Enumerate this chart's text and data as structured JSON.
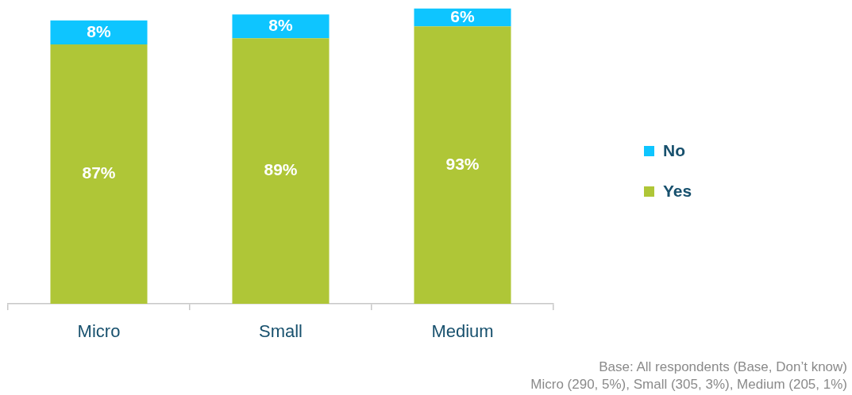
{
  "chart_data": {
    "type": "bar",
    "stacked": true,
    "categories": [
      "Micro",
      "Small",
      "Medium"
    ],
    "series": [
      {
        "name": "Yes",
        "color": "#afc637",
        "values": [
          87,
          89,
          93
        ],
        "value_labels": [
          "87%",
          "89%",
          "93%"
        ]
      },
      {
        "name": "No",
        "color": "#0ec5ff",
        "values": [
          8,
          8,
          6
        ],
        "value_labels": [
          "8%",
          "8%",
          "6%"
        ]
      }
    ],
    "legend": "right",
    "tick_labels": "x",
    "annotations": [
      "Base: All respondents (Base, Don’t know)",
      "Micro (290, 5%), Small (305, 3%), Medium (205, 1%)"
    ]
  }
}
